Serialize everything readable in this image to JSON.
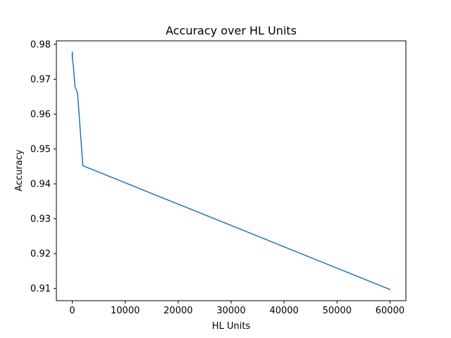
{
  "chart_data": {
    "type": "line",
    "title": "Accuracy over HL Units",
    "xlabel": "HL Units",
    "ylabel": "Accuracy",
    "xlim": [
      -3000,
      63000
    ],
    "ylim": [
      0.9065,
      0.981
    ],
    "xticks": [
      0,
      10000,
      20000,
      30000,
      40000,
      50000,
      60000
    ],
    "yticks": [
      0.91,
      0.92,
      0.93,
      0.94,
      0.95,
      0.96,
      0.97,
      0.98
    ],
    "xtick_labels": [
      "0",
      "10000",
      "20000",
      "30000",
      "40000",
      "50000",
      "60000"
    ],
    "ytick_labels": [
      "0.91",
      "0.92",
      "0.93",
      "0.94",
      "0.95",
      "0.96",
      "0.97",
      "0.98"
    ],
    "grid": false,
    "series": [
      {
        "name": "",
        "color": "#1f77b4",
        "x": [
          1,
          10,
          50,
          100,
          200,
          500,
          1000,
          2000,
          60000
        ],
        "y": [
          0.9762,
          0.9778,
          0.976,
          0.975,
          0.974,
          0.968,
          0.966,
          0.9452,
          0.9097
        ]
      }
    ]
  }
}
